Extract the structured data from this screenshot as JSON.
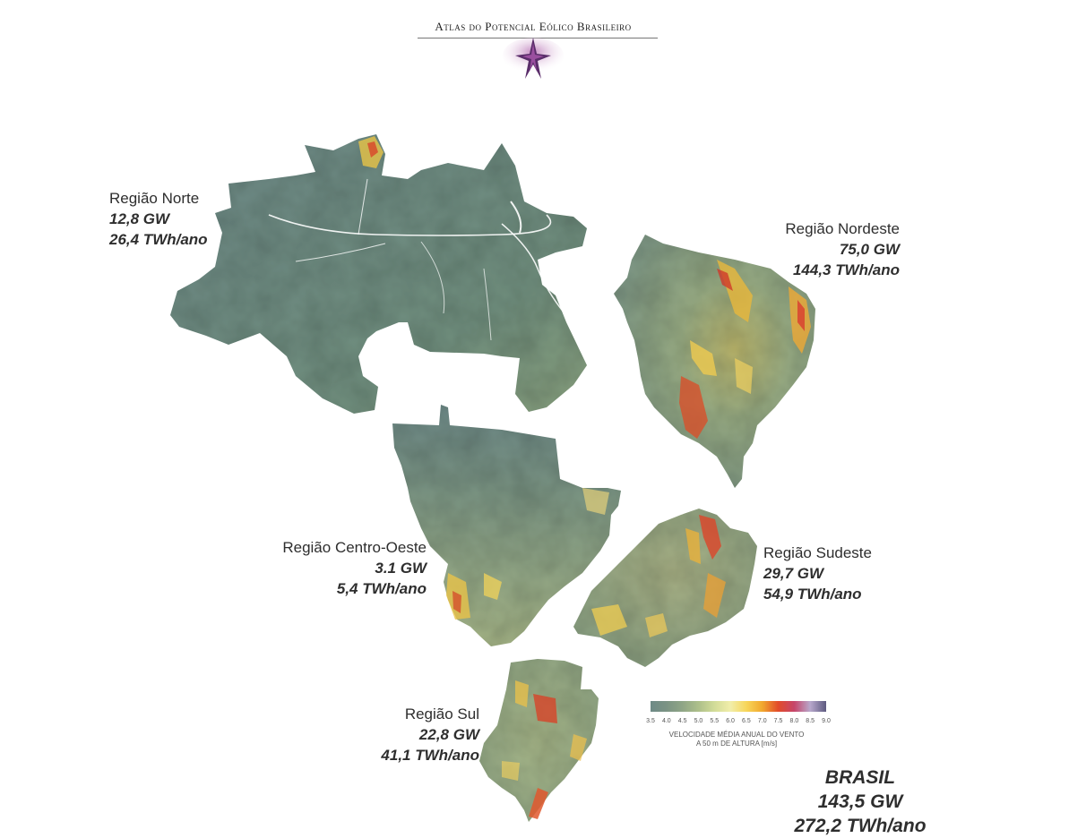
{
  "header": {
    "title": "Atlas do Potencial Eólico Brasileiro"
  },
  "regions": {
    "norte": {
      "name_prefix": "Região",
      "name": "Norte",
      "capacity": "12,8 GW",
      "energy": "26,4 TWh/ano"
    },
    "nordeste": {
      "name_prefix": "Região",
      "name": "Nordeste",
      "capacity": "75,0 GW",
      "energy": "144,3 TWh/ano"
    },
    "centro_oeste": {
      "name_prefix": "Região",
      "name": "Centro-Oeste",
      "capacity": "3.1 GW",
      "energy": "5,4 TWh/ano"
    },
    "sudeste": {
      "name_prefix": "Região",
      "name": "Sudeste",
      "capacity": "29,7 GW",
      "energy": "54,9 TWh/ano"
    },
    "sul": {
      "name_prefix": "Região",
      "name": "Sul",
      "capacity": "22,8 GW",
      "energy": "41,1 TWh/ano"
    }
  },
  "legend": {
    "ticks": [
      "3.5",
      "4.0",
      "4.5",
      "5.0",
      "5.5",
      "6.0",
      "6.5",
      "7.0",
      "7.5",
      "8.0",
      "8.5",
      "9.0"
    ],
    "colors": [
      "#6e8a86",
      "#7b9384",
      "#8fa586",
      "#adbf8a",
      "#d2dc98",
      "#f1eeaa",
      "#f7d65a",
      "#f1a82e",
      "#e24b2a",
      "#c6456a",
      "#b8a8cc",
      "#5d5a80"
    ],
    "caption_line1": "VELOCIDADE MÉDIA ANUAL DO VENTO",
    "caption_line2": "A 50 m DE ALTURA  [m/s]"
  },
  "brasil": {
    "name": "BRASIL",
    "capacity": "143,5 GW",
    "energy": "272,2 TWh/ano"
  },
  "colors": {
    "low_wind": "#6e8a86",
    "mid_wind": "#9fb28a",
    "high_wind": "#f0c43a",
    "very_high_wind": "#d9452a",
    "river": "#ffffff"
  }
}
